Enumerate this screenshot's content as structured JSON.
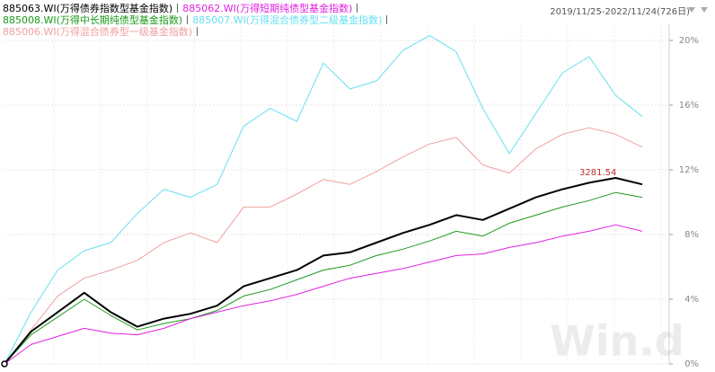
{
  "chart_data": {
    "type": "line",
    "date_range": "2019/11/25-2022/11/24(726日)",
    "series": [
      {
        "name": "885063.WI(万得债券指数型基金指数)",
        "color": "#000000",
        "width": 2,
        "values": [
          0,
          2,
          3.2,
          4.4,
          3.2,
          2.3,
          2.8,
          3.1,
          3.6,
          4.8,
          5.3,
          5.8,
          6.7,
          6.9,
          7.5,
          8.1,
          8.6,
          9.2,
          8.9,
          9.6,
          10.3,
          10.8,
          11.2,
          11.5,
          11.1
        ]
      },
      {
        "name": "885062.WI(万得短期纯债型基金指数)",
        "color": "#e020e0",
        "width": 1,
        "values": [
          0,
          1.2,
          1.7,
          2.2,
          1.9,
          1.8,
          2.2,
          2.8,
          3.2,
          3.6,
          3.9,
          4.3,
          4.8,
          5.3,
          5.6,
          5.9,
          6.3,
          6.7,
          6.8,
          7.2,
          7.5,
          7.9,
          8.2,
          8.6,
          8.2
        ]
      },
      {
        "name": "885008.WI(万得中长期纯债型基金指数)",
        "color": "#1a9a1a",
        "width": 1,
        "values": [
          0,
          1.8,
          2.9,
          4,
          3,
          2.1,
          2.5,
          2.8,
          3.3,
          4.2,
          4.6,
          5.2,
          5.8,
          6.1,
          6.7,
          7.1,
          7.6,
          8.2,
          7.9,
          8.7,
          9.2,
          9.7,
          10.1,
          10.6,
          10.3
        ]
      },
      {
        "name": "885007.WI(万得混合债券型二级基金指数)",
        "color": "#66dff0",
        "width": 1,
        "values": [
          0,
          3.2,
          5.8,
          7,
          7.5,
          9.3,
          10.8,
          10.3,
          11.1,
          14.7,
          15.8,
          15,
          18.6,
          17,
          17.5,
          19.4,
          20.3,
          19.3,
          15.8,
          13,
          15.5,
          18,
          19,
          16.6,
          15.3
        ]
      },
      {
        "name": "885006.WI(万得混合债券型一级基金指数)",
        "color": "#f0a0a0",
        "width": 1,
        "values": [
          0,
          2.1,
          4.2,
          5.3,
          5.8,
          6.4,
          7.5,
          8.1,
          7.5,
          9.7,
          9.7,
          10.5,
          11.4,
          11.1,
          11.9,
          12.8,
          13.6,
          14,
          12.3,
          11.8,
          13.3,
          14.2,
          14.6,
          14.2,
          13.4
        ]
      }
    ],
    "ylim": [
      0,
      21
    ],
    "yticks": [
      {
        "value": 0,
        "label": "0%"
      },
      {
        "value": 4,
        "label": "4%"
      },
      {
        "value": 8,
        "label": "8%"
      },
      {
        "value": 12,
        "label": "12%"
      },
      {
        "value": 16,
        "label": "16%"
      },
      {
        "value": 20,
        "label": "20%"
      }
    ],
    "grid": true,
    "annotation": {
      "text": "3281.54",
      "color": "#c03030"
    },
    "watermark": "Win.d"
  }
}
